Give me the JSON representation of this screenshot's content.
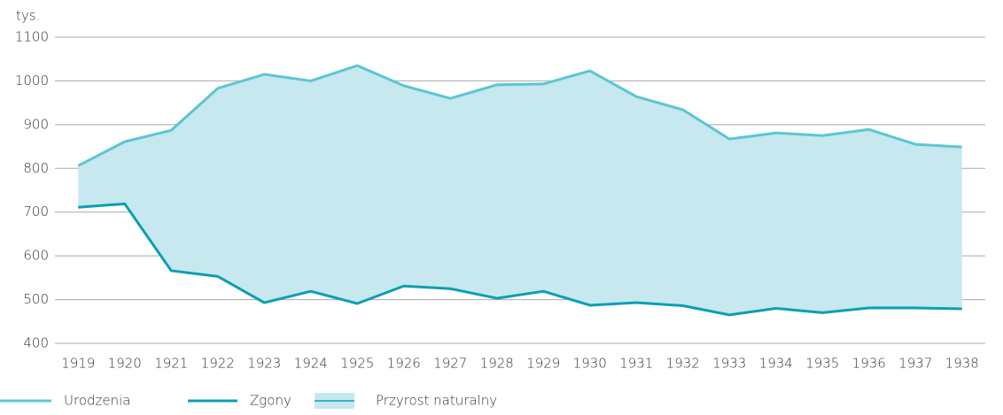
{
  "chart_data": {
    "type": "line",
    "y_unit": "tys.",
    "categories": [
      "1919",
      "1920",
      "1921",
      "1922",
      "1923",
      "1924",
      "1925",
      "1926",
      "1927",
      "1928",
      "1929",
      "1930",
      "1931",
      "1932",
      "1933",
      "1934",
      "1935",
      "1936",
      "1937",
      "1938"
    ],
    "series": [
      {
        "name": "Urodzenia",
        "color": "#5cc6d3",
        "values": [
          806,
          861,
          887,
          983,
          1015,
          1000,
          1035,
          989,
          960,
          991,
          993,
          1023,
          964,
          934,
          867,
          881,
          875,
          889,
          855,
          849
        ]
      },
      {
        "name": "Zgony",
        "color": "#0c9fb3",
        "values": [
          711,
          719,
          566,
          553,
          493,
          519,
          491,
          531,
          525,
          503,
          519,
          487,
          493,
          486,
          465,
          480,
          470,
          481,
          481,
          479
        ]
      }
    ],
    "fill_between": {
      "name": "Przyrost naturalny",
      "color": "#c6e8ee"
    },
    "ylim": [
      400,
      1100
    ],
    "yticks": [
      400,
      500,
      600,
      700,
      800,
      900,
      1000,
      1100
    ],
    "grid": true
  }
}
